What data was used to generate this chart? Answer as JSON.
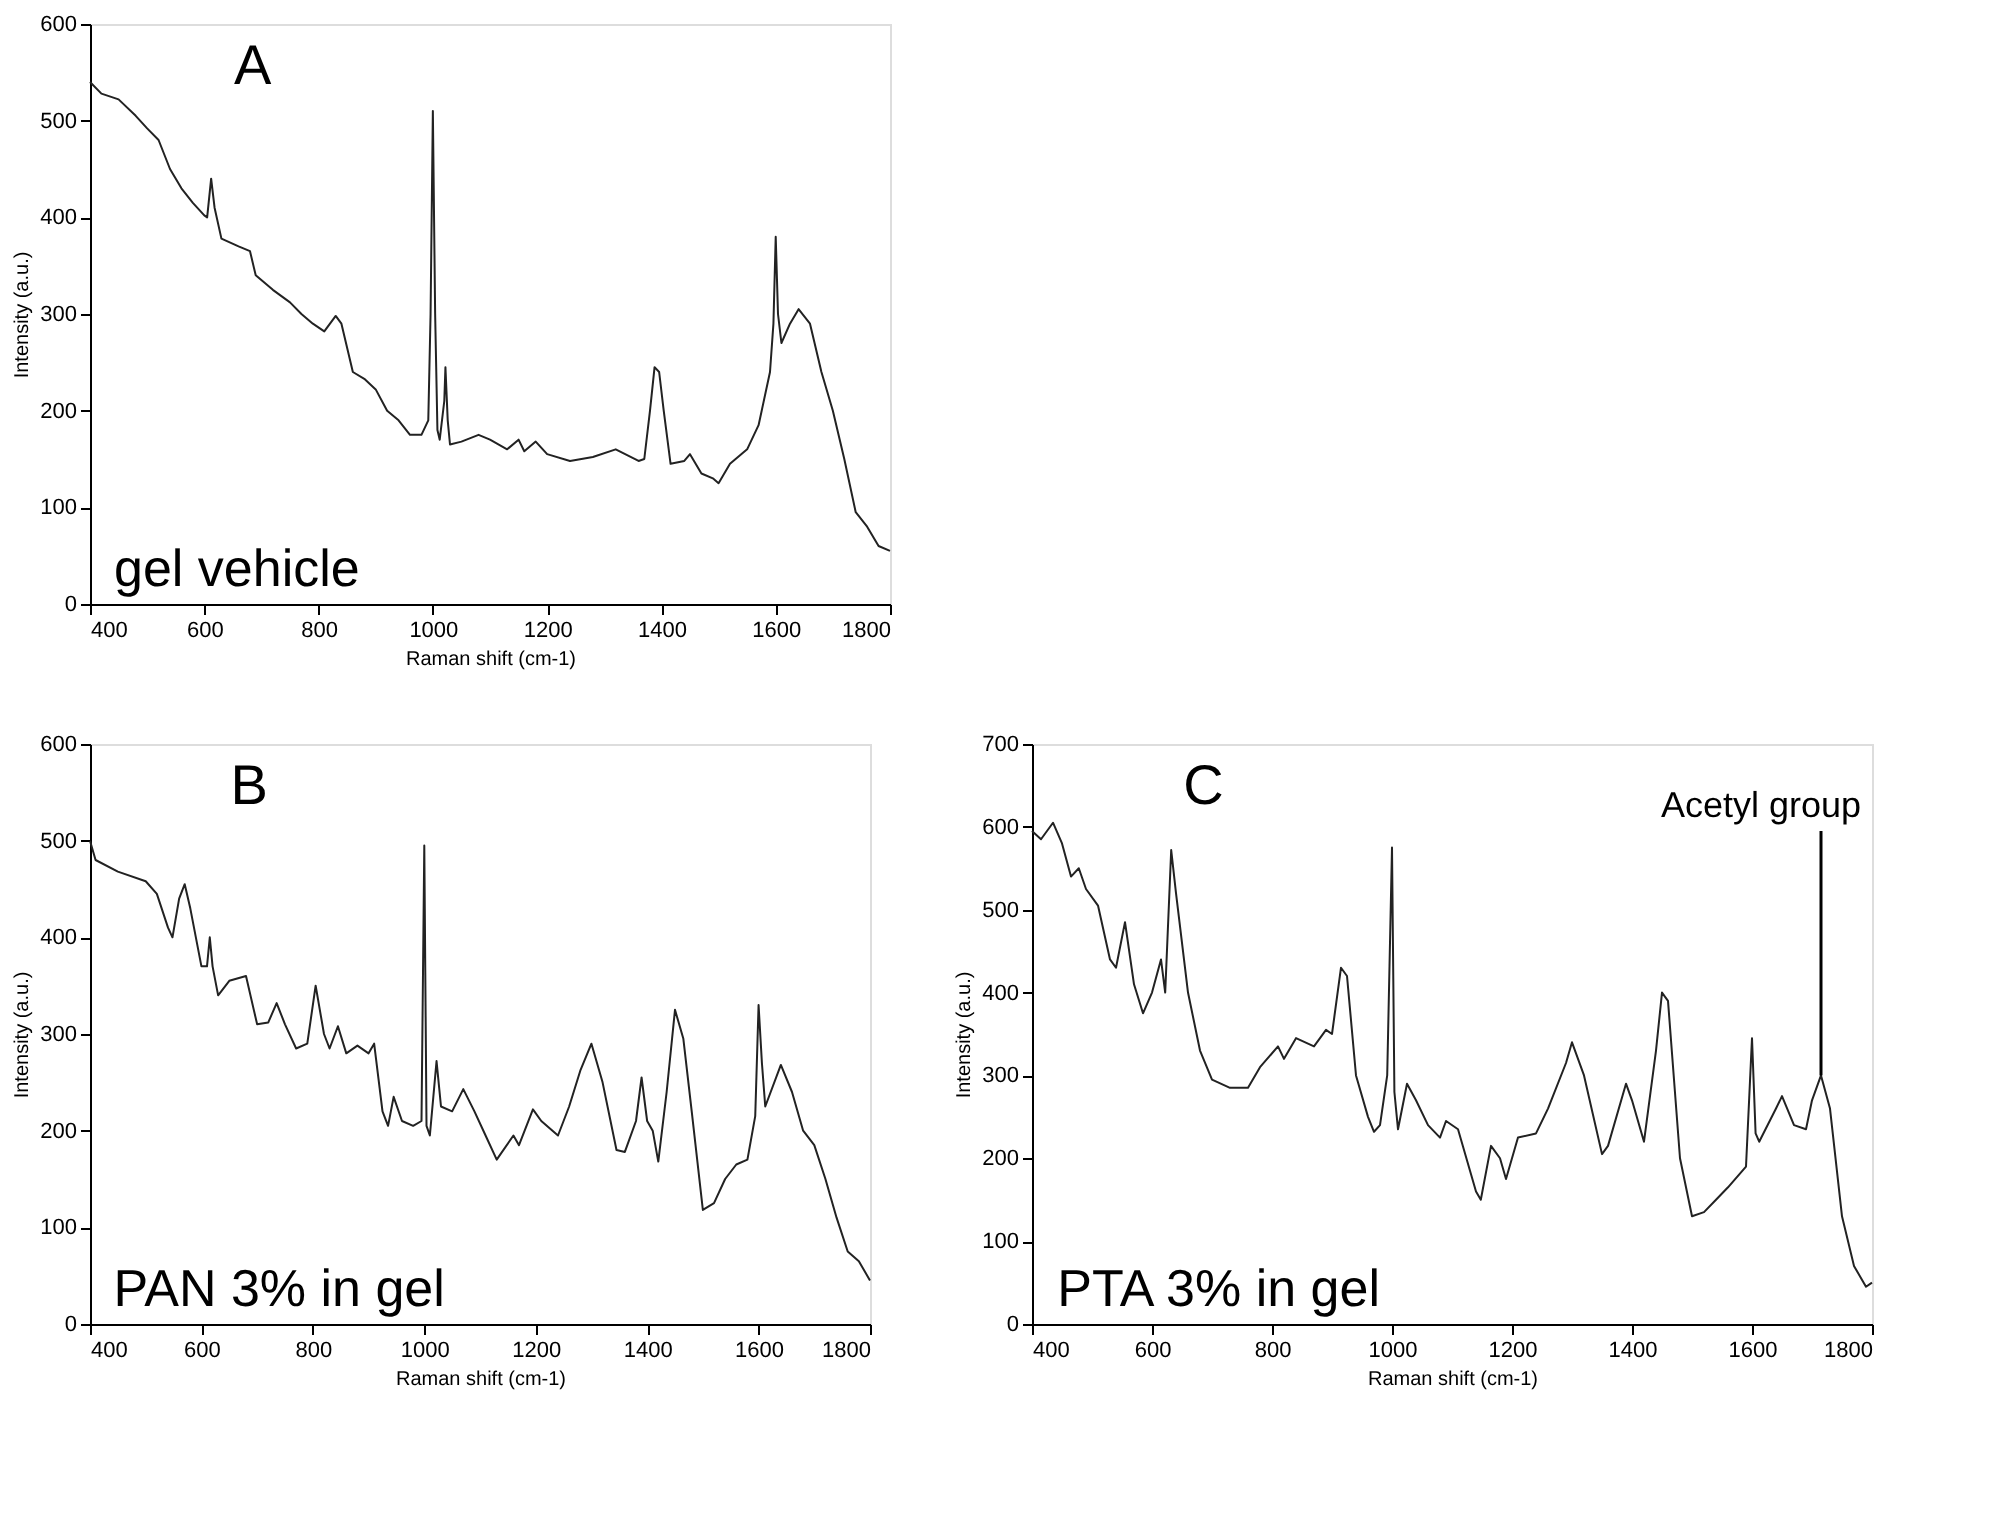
{
  "chart_data": [
    {
      "type": "line",
      "xlabel": "Raman shift (cm-1)",
      "ylabel": "Intensity (a.u.)",
      "color": "#222222",
      "xlim": [
        400,
        1800
      ],
      "ylim": [
        0,
        600
      ],
      "xticks": [
        400,
        600,
        800,
        1000,
        1200,
        1400,
        1600,
        1800
      ],
      "yticks": [
        0,
        100,
        200,
        300,
        400,
        500,
        600
      ],
      "annotations": [
        "A",
        "gel vehicle"
      ],
      "x": [
        400,
        420,
        450,
        480,
        500,
        520,
        540,
        560,
        580,
        600,
        605,
        612,
        618,
        630,
        660,
        680,
        690,
        720,
        750,
        770,
        790,
        810,
        830,
        840,
        860,
        880,
        900,
        920,
        940,
        960,
        980,
        992,
        996,
        1000,
        1004,
        1008,
        1012,
        1020,
        1022,
        1026,
        1030,
        1050,
        1080,
        1100,
        1130,
        1150,
        1160,
        1180,
        1200,
        1240,
        1280,
        1320,
        1360,
        1370,
        1380,
        1388,
        1396,
        1404,
        1416,
        1440,
        1450,
        1470,
        1490,
        1500,
        1520,
        1550,
        1570,
        1590,
        1596,
        1600,
        1604,
        1610,
        1625,
        1640,
        1660,
        1680,
        1700,
        1720,
        1740,
        1760,
        1780,
        1800
      ],
      "values": [
        540,
        528,
        522,
        505,
        492,
        480,
        450,
        430,
        415,
        402,
        400,
        440,
        410,
        378,
        370,
        365,
        340,
        325,
        312,
        300,
        290,
        282,
        298,
        290,
        240,
        233,
        222,
        200,
        190,
        175,
        175,
        190,
        300,
        510,
        300,
        180,
        170,
        210,
        245,
        190,
        165,
        168,
        175,
        170,
        160,
        170,
        158,
        168,
        155,
        148,
        152,
        160,
        148,
        150,
        200,
        245,
        240,
        200,
        145,
        148,
        155,
        135,
        130,
        125,
        145,
        160,
        185,
        240,
        290,
        380,
        300,
        270,
        290,
        305,
        290,
        240,
        200,
        150,
        95,
        80,
        60,
        55
      ]
    },
    {
      "type": "line",
      "xlabel": "Raman shift (cm-1)",
      "ylabel": "Intensity (a.u.)",
      "color": "#222222",
      "xlim": [
        400,
        1800
      ],
      "ylim": [
        0,
        600
      ],
      "xticks": [
        400,
        600,
        800,
        1000,
        1200,
        1400,
        1600,
        1800
      ],
      "yticks": [
        0,
        100,
        200,
        300,
        400,
        500,
        600
      ],
      "annotations": [
        "B",
        "PAN 3% in gel"
      ],
      "x": [
        400,
        410,
        450,
        500,
        520,
        540,
        548,
        560,
        570,
        580,
        600,
        610,
        615,
        620,
        630,
        650,
        680,
        700,
        720,
        735,
        750,
        770,
        790,
        805,
        820,
        830,
        845,
        860,
        880,
        900,
        910,
        925,
        935,
        945,
        960,
        980,
        995,
        1000,
        1004,
        1010,
        1022,
        1030,
        1050,
        1070,
        1090,
        1110,
        1130,
        1160,
        1170,
        1195,
        1210,
        1240,
        1260,
        1280,
        1300,
        1320,
        1345,
        1360,
        1380,
        1390,
        1400,
        1410,
        1420,
        1435,
        1450,
        1465,
        1480,
        1500,
        1520,
        1540,
        1560,
        1580,
        1594,
        1600,
        1606,
        1612,
        1640,
        1660,
        1680,
        1700,
        1720,
        1740,
        1760,
        1780,
        1800
      ],
      "values": [
        500,
        480,
        468,
        458,
        445,
        410,
        400,
        440,
        455,
        430,
        370,
        370,
        400,
        370,
        340,
        355,
        360,
        310,
        312,
        332,
        310,
        285,
        290,
        350,
        300,
        285,
        308,
        280,
        288,
        280,
        290,
        220,
        205,
        235,
        210,
        205,
        210,
        495,
        205,
        195,
        272,
        225,
        220,
        243,
        220,
        195,
        170,
        195,
        185,
        222,
        210,
        195,
        225,
        262,
        290,
        250,
        180,
        178,
        210,
        255,
        210,
        200,
        168,
        240,
        325,
        295,
        220,
        118,
        125,
        150,
        165,
        170,
        215,
        330,
        270,
        225,
        268,
        240,
        200,
        185,
        150,
        110,
        75,
        65,
        45
      ]
    },
    {
      "type": "line",
      "xlabel": "Raman shift (cm-1)",
      "ylabel": "Intensity (a.u.)",
      "color": "#222222",
      "xlim": [
        400,
        1800
      ],
      "ylim": [
        0,
        700
      ],
      "xticks": [
        400,
        600,
        800,
        1000,
        1200,
        1400,
        1600,
        1800
      ],
      "yticks": [
        0,
        100,
        200,
        300,
        400,
        500,
        600,
        700
      ],
      "annotations": [
        "C",
        "PTA 3% in gel",
        {
          "text": "Acetyl group",
          "x": 1715,
          "y": 300
        }
      ],
      "x": [
        400,
        415,
        435,
        450,
        465,
        478,
        490,
        510,
        530,
        540,
        555,
        570,
        585,
        600,
        615,
        622,
        632,
        640,
        660,
        680,
        700,
        730,
        760,
        780,
        810,
        820,
        840,
        870,
        890,
        900,
        915,
        925,
        940,
        960,
        970,
        980,
        992,
        1000,
        1004,
        1010,
        1025,
        1040,
        1060,
        1080,
        1090,
        1110,
        1140,
        1148,
        1165,
        1180,
        1190,
        1210,
        1240,
        1260,
        1290,
        1300,
        1320,
        1350,
        1360,
        1390,
        1400,
        1420,
        1440,
        1450,
        1460,
        1480,
        1500,
        1520,
        1540,
        1560,
        1590,
        1600,
        1606,
        1612,
        1640,
        1650,
        1670,
        1690,
        1700,
        1715,
        1730,
        1750,
        1770,
        1790,
        1800
      ],
      "values": [
        595,
        585,
        605,
        580,
        540,
        550,
        525,
        505,
        440,
        430,
        485,
        410,
        375,
        400,
        440,
        400,
        572,
        520,
        400,
        330,
        295,
        285,
        285,
        310,
        335,
        320,
        345,
        335,
        355,
        350,
        430,
        420,
        300,
        250,
        232,
        240,
        300,
        575,
        280,
        235,
        290,
        270,
        240,
        225,
        245,
        235,
        160,
        150,
        215,
        200,
        175,
        225,
        230,
        260,
        315,
        340,
        300,
        205,
        215,
        290,
        270,
        220,
        330,
        400,
        390,
        200,
        130,
        135,
        150,
        165,
        190,
        345,
        230,
        220,
        260,
        275,
        240,
        235,
        270,
        300,
        260,
        130,
        70,
        45,
        50
      ]
    }
  ]
}
